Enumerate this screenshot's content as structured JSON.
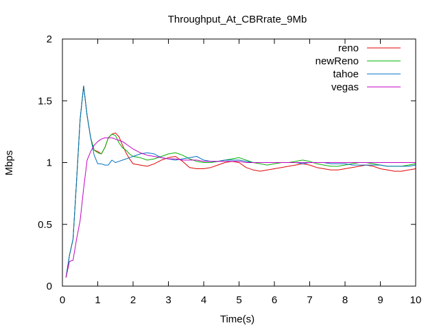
{
  "chart_data": {
    "type": "line",
    "title": "Throughput_At_CBRrate_9Mb",
    "xlabel": "Time(s)",
    "ylabel": "Mbps",
    "xlim": [
      0,
      10
    ],
    "ylim": [
      0,
      2
    ],
    "xticks": [
      0,
      1,
      2,
      3,
      4,
      5,
      6,
      7,
      8,
      9,
      10
    ],
    "yticks": [
      0,
      0.5,
      1,
      1.5,
      2
    ],
    "grid": false,
    "legend_position": "top-right",
    "series": [
      {
        "name": "reno",
        "color": "#e00000",
        "x": [
          0.1,
          0.2,
          0.3,
          0.4,
          0.5,
          0.6,
          0.7,
          0.8,
          0.9,
          1.0,
          1.1,
          1.2,
          1.3,
          1.4,
          1.5,
          1.6,
          1.7,
          1.8,
          1.9,
          2.0,
          2.2,
          2.4,
          2.6,
          2.8,
          3.0,
          3.2,
          3.4,
          3.6,
          3.8,
          4.0,
          4.2,
          4.4,
          4.6,
          4.8,
          5.0,
          5.2,
          5.4,
          5.6,
          5.8,
          6.0,
          6.2,
          6.4,
          6.6,
          6.8,
          7.0,
          7.2,
          7.4,
          7.6,
          7.8,
          8.0,
          8.2,
          8.4,
          8.6,
          8.8,
          9.0,
          9.2,
          9.4,
          9.6,
          9.8,
          10.0
        ],
        "y": [
          0.07,
          0.25,
          0.38,
          0.85,
          1.35,
          1.62,
          1.38,
          1.2,
          1.1,
          1.09,
          1.07,
          1.12,
          1.2,
          1.23,
          1.24,
          1.21,
          1.14,
          1.08,
          1.03,
          0.99,
          0.98,
          0.97,
          0.99,
          1.02,
          1.04,
          1.05,
          1.01,
          0.96,
          0.95,
          0.95,
          0.96,
          0.98,
          1.0,
          1.01,
          1.0,
          0.96,
          0.94,
          0.93,
          0.94,
          0.95,
          0.96,
          0.97,
          0.98,
          0.99,
          0.98,
          0.96,
          0.95,
          0.94,
          0.94,
          0.95,
          0.96,
          0.97,
          0.98,
          0.97,
          0.95,
          0.94,
          0.93,
          0.93,
          0.94,
          0.95
        ]
      },
      {
        "name": "newReno",
        "color": "#00b000",
        "x": [
          0.1,
          0.2,
          0.3,
          0.4,
          0.5,
          0.6,
          0.7,
          0.8,
          0.9,
          1.0,
          1.1,
          1.2,
          1.3,
          1.4,
          1.5,
          1.6,
          1.7,
          1.8,
          1.9,
          2.0,
          2.2,
          2.4,
          2.6,
          2.8,
          3.0,
          3.2,
          3.4,
          3.6,
          3.8,
          4.0,
          4.2,
          4.4,
          4.6,
          4.8,
          5.0,
          5.2,
          5.4,
          5.6,
          5.8,
          6.0,
          6.2,
          6.4,
          6.6,
          6.8,
          7.0,
          7.2,
          7.4,
          7.6,
          7.8,
          8.0,
          8.2,
          8.4,
          8.6,
          8.8,
          9.0,
          9.2,
          9.4,
          9.6,
          9.8,
          10.0
        ],
        "y": [
          0.07,
          0.25,
          0.38,
          0.85,
          1.35,
          1.62,
          1.38,
          1.2,
          1.1,
          1.08,
          1.07,
          1.12,
          1.2,
          1.23,
          1.22,
          1.16,
          1.12,
          1.1,
          1.07,
          1.05,
          1.04,
          1.02,
          1.03,
          1.05,
          1.07,
          1.08,
          1.06,
          1.03,
          1.01,
          1.0,
          1.0,
          1.01,
          1.02,
          1.03,
          1.04,
          1.02,
          1.0,
          0.99,
          0.98,
          0.99,
          1.0,
          1.0,
          1.01,
          1.02,
          1.01,
          0.99,
          0.98,
          0.97,
          0.97,
          0.98,
          0.99,
          1.0,
          1.0,
          0.99,
          0.98,
          0.97,
          0.97,
          0.97,
          0.98,
          0.99
        ]
      },
      {
        "name": "tahoe",
        "color": "#0070c0",
        "x": [
          0.1,
          0.2,
          0.3,
          0.4,
          0.5,
          0.6,
          0.7,
          0.8,
          0.9,
          1.0,
          1.1,
          1.2,
          1.3,
          1.4,
          1.5,
          1.6,
          1.7,
          1.8,
          1.9,
          2.0,
          2.2,
          2.4,
          2.6,
          2.8,
          3.0,
          3.2,
          3.4,
          3.6,
          3.8,
          4.0,
          4.2,
          4.4,
          4.6,
          4.8,
          5.0,
          5.2,
          5.4,
          5.6,
          5.8,
          6.0,
          6.2,
          6.4,
          6.6,
          6.8,
          7.0,
          7.2,
          7.4,
          7.6,
          7.8,
          8.0,
          8.2,
          8.4,
          8.6,
          8.8,
          9.0,
          9.2,
          9.4,
          9.6,
          9.8,
          10.0
        ],
        "y": [
          0.07,
          0.25,
          0.38,
          0.85,
          1.35,
          1.62,
          1.38,
          1.2,
          1.06,
          0.99,
          0.99,
          0.98,
          0.98,
          1.02,
          1.0,
          1.01,
          1.02,
          1.03,
          1.04,
          1.05,
          1.07,
          1.08,
          1.07,
          1.04,
          1.03,
          1.02,
          1.03,
          1.04,
          1.05,
          1.02,
          1.01,
          1.01,
          1.02,
          1.02,
          1.02,
          1.01,
          1.0,
          1.0,
          1.0,
          1.0,
          1.0,
          1.0,
          1.0,
          0.99,
          1.0,
          1.0,
          1.0,
          0.99,
          0.99,
          0.99,
          0.98,
          0.98,
          0.98,
          0.98,
          0.98,
          0.97,
          0.97,
          0.97,
          0.97,
          0.98
        ]
      },
      {
        "name": "vegas",
        "color": "#c000c0",
        "x": [
          0.1,
          0.2,
          0.3,
          0.4,
          0.5,
          0.6,
          0.7,
          0.8,
          0.9,
          1.0,
          1.1,
          1.2,
          1.3,
          1.4,
          1.5,
          1.6,
          1.7,
          1.8,
          1.9,
          2.0,
          2.2,
          2.4,
          2.6,
          2.8,
          3.0,
          3.2,
          3.4,
          3.6,
          3.8,
          4.0,
          4.2,
          4.4,
          4.6,
          4.8,
          5.0,
          5.2,
          5.4,
          5.6,
          5.8,
          6.0,
          6.2,
          6.4,
          6.6,
          6.8,
          7.0,
          7.2,
          7.4,
          7.6,
          7.8,
          8.0,
          8.2,
          8.4,
          8.6,
          8.8,
          9.0,
          9.2,
          9.4,
          9.6,
          9.8,
          10.0
        ],
        "y": [
          0.07,
          0.2,
          0.21,
          0.38,
          0.53,
          0.79,
          1.02,
          1.09,
          1.14,
          1.17,
          1.19,
          1.2,
          1.2,
          1.2,
          1.19,
          1.18,
          1.17,
          1.15,
          1.13,
          1.11,
          1.08,
          1.06,
          1.05,
          1.04,
          1.03,
          1.03,
          1.02,
          1.02,
          1.02,
          1.01,
          1.01,
          1.01,
          1.01,
          1.01,
          1.01,
          1.0,
          1.0,
          1.0,
          1.0,
          1.0,
          1.0,
          1.0,
          1.0,
          1.0,
          1.0,
          1.0,
          1.0,
          1.0,
          1.0,
          1.0,
          1.0,
          1.0,
          1.0,
          1.0,
          1.0,
          1.0,
          1.0,
          1.0,
          1.0,
          1.0
        ]
      }
    ]
  }
}
